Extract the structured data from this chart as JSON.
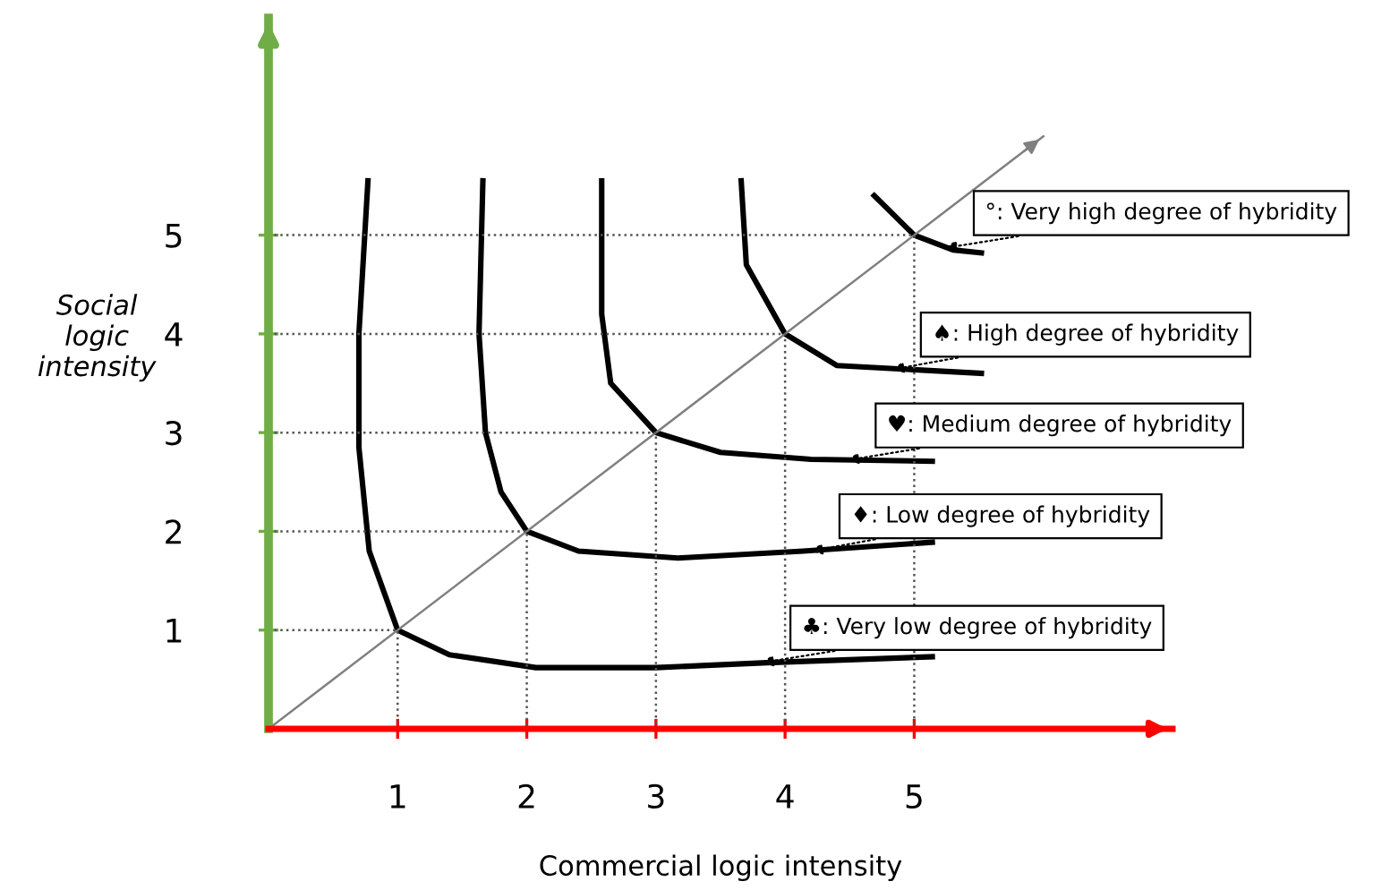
{
  "chart_data": {
    "type": "line",
    "xlabel": "Commercial logic intensity",
    "ylabel": "Social\nlogic\nintensity",
    "xlim": [
      0,
      7
    ],
    "ylim": [
      0,
      7.2
    ],
    "xticks": [
      1,
      2,
      3,
      4,
      5
    ],
    "yticks": [
      1,
      2,
      3,
      4,
      5
    ],
    "grid": false,
    "marker": "none",
    "series": [
      {
        "color": "#000000",
        "line_style": "solid",
        "x": [
          0.77,
          0.7,
          0.7,
          0.78,
          1,
          1.4,
          2.07,
          3,
          3.86,
          5.14
        ],
        "values": [
          5.55,
          4,
          2.85,
          1.8,
          1,
          0.75,
          0.62,
          0.62,
          0.67,
          0.73
        ]
      },
      {
        "color": "#000000",
        "line_style": "solid",
        "x": [
          1.66,
          1.63,
          1.68,
          1.8,
          2,
          2.4,
          3.17,
          4.14,
          5.14
        ],
        "values": [
          5.55,
          4,
          3,
          2.4,
          2,
          1.8,
          1.73,
          1.8,
          1.89
        ]
      },
      {
        "color": "#000000",
        "line_style": "solid",
        "x": [
          2.58,
          2.58,
          2.65,
          3,
          3.5,
          4.2,
          5.14
        ],
        "values": [
          5.55,
          4.2,
          3.5,
          3,
          2.8,
          2.73,
          2.71
        ]
      },
      {
        "color": "#000000",
        "line_style": "solid",
        "x": [
          3.66,
          3.7,
          4,
          4.4,
          5.52
        ],
        "values": [
          5.55,
          4.7,
          4,
          3.68,
          3.6
        ]
      },
      {
        "color": "#000000",
        "line_style": "solid",
        "x": [
          4.69,
          5,
          5.3,
          5.52
        ],
        "values": [
          5.4,
          5,
          4.85,
          4.82
        ]
      },
      {
        "color": "#7f7f7f",
        "line_style": "solid",
        "x": [
          0,
          6
        ],
        "values": [
          0,
          6
        ]
      },
      {
        "color": "#555555",
        "line_style": "dotted",
        "x": [
          0,
          1,
          1
        ],
        "values": [
          1,
          1,
          0
        ]
      },
      {
        "color": "#555555",
        "line_style": "dotted",
        "x": [
          0,
          2,
          2
        ],
        "values": [
          2,
          2,
          0
        ]
      },
      {
        "color": "#555555",
        "line_style": "dotted",
        "x": [
          0,
          3,
          3
        ],
        "values": [
          3,
          3,
          0
        ]
      },
      {
        "color": "#555555",
        "line_style": "dotted",
        "x": [
          0,
          4,
          4
        ],
        "values": [
          4,
          4,
          0
        ]
      },
      {
        "color": "#555555",
        "line_style": "dotted",
        "x": [
          0,
          5,
          5
        ],
        "values": [
          5,
          5,
          0
        ]
      }
    ],
    "annotations": [
      {
        "text": "°: Very high degree of hybridity",
        "x": 5.24,
        "y": 4.87
      },
      {
        "text": "♠: High degree of hybridity",
        "x": 4.83,
        "y": 3.64
      },
      {
        "text": "♥: Medium degree of hybridity",
        "x": 4.48,
        "y": 2.72
      },
      {
        "text": "♦: Low degree of hybridity",
        "x": 4.2,
        "y": 1.8
      },
      {
        "text": "♣: Very low degree of hybridity",
        "x": 3.82,
        "y": 0.67
      }
    ]
  }
}
